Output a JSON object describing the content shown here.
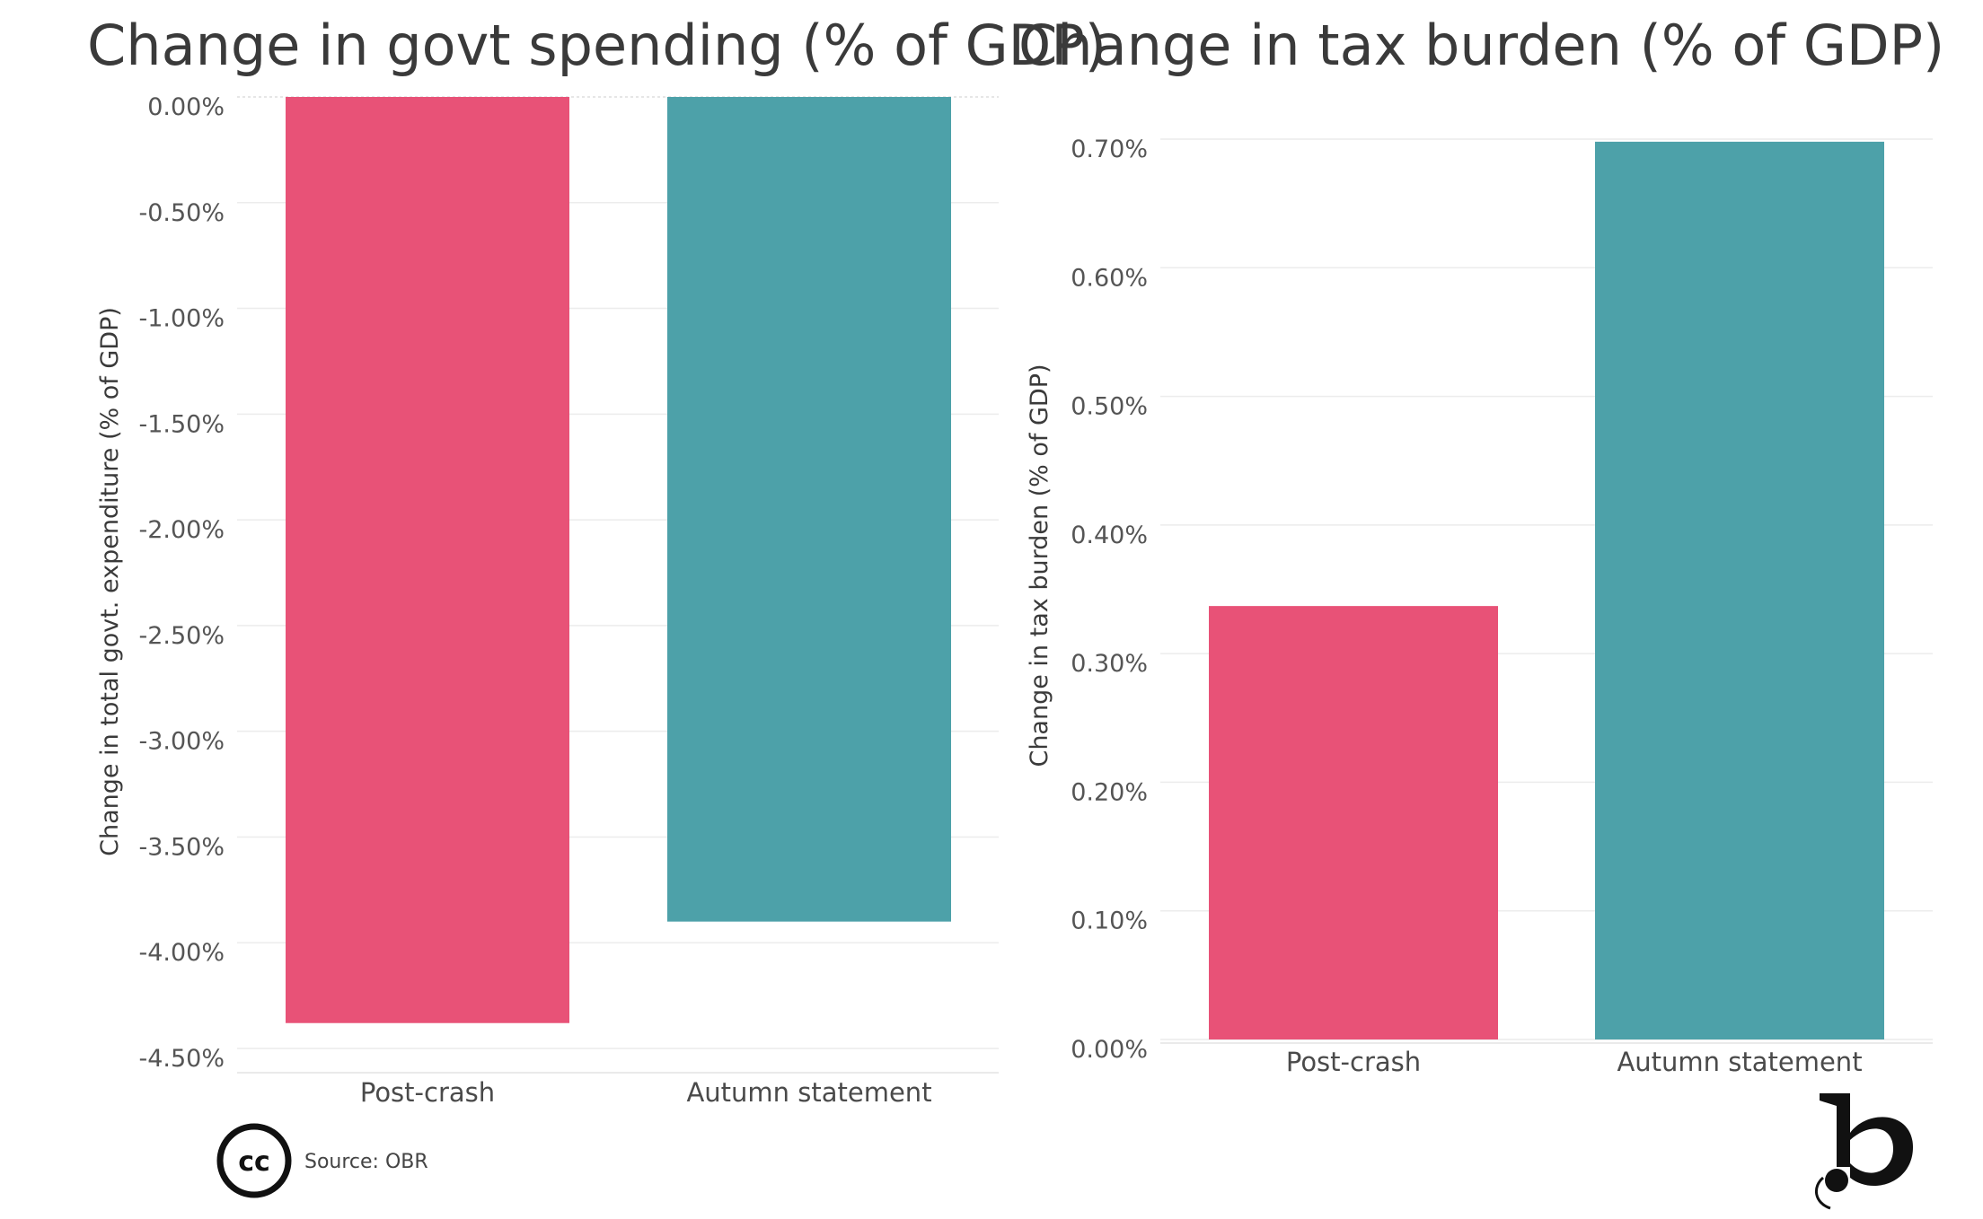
{
  "colors": {
    "post_crash": "#e85277",
    "autumn_statement": "#4da1a9"
  },
  "footer": {
    "license_icon": "creative-commons-icon",
    "license_text": "cc",
    "source": "Source: OBR",
    "logo_icon": "b-logo-icon"
  },
  "chart_data": [
    {
      "type": "bar",
      "title": "Change in govt spending (% of GDP)",
      "ylabel": "Change in total govt. expenditure (% of GDP)",
      "xlabel": "",
      "categories": [
        "Post-crash",
        "Autumn statement"
      ],
      "values": [
        -4.38,
        -3.9
      ],
      "unit": "%",
      "ylim": [
        -4.5,
        0.0
      ],
      "yticks": [
        0.0,
        -0.5,
        -1.0,
        -1.5,
        -2.0,
        -2.5,
        -3.0,
        -3.5,
        -4.0,
        -4.5
      ],
      "ytick_labels": [
        "0.00%",
        "-0.50%",
        "-1.00%",
        "-1.50%",
        "-2.00%",
        "-2.50%",
        "-3.00%",
        "-3.50%",
        "-4.00%",
        "-4.50%"
      ],
      "grid": true,
      "legend": false
    },
    {
      "type": "bar",
      "title": "Change in tax burden (% of GDP)",
      "ylabel": "Change in tax burden (% of GDP)",
      "xlabel": "",
      "categories": [
        "Post-crash",
        "Autumn statement"
      ],
      "values": [
        0.337,
        0.698
      ],
      "unit": "%",
      "ylim": [
        0.0,
        0.7
      ],
      "yticks": [
        0.0,
        0.1,
        0.2,
        0.3,
        0.4,
        0.5,
        0.6,
        0.7
      ],
      "ytick_labels": [
        "0.00%",
        "0.10%",
        "0.20%",
        "0.30%",
        "0.40%",
        "0.50%",
        "0.60%",
        "0.70%"
      ],
      "grid": true,
      "legend": false
    }
  ]
}
